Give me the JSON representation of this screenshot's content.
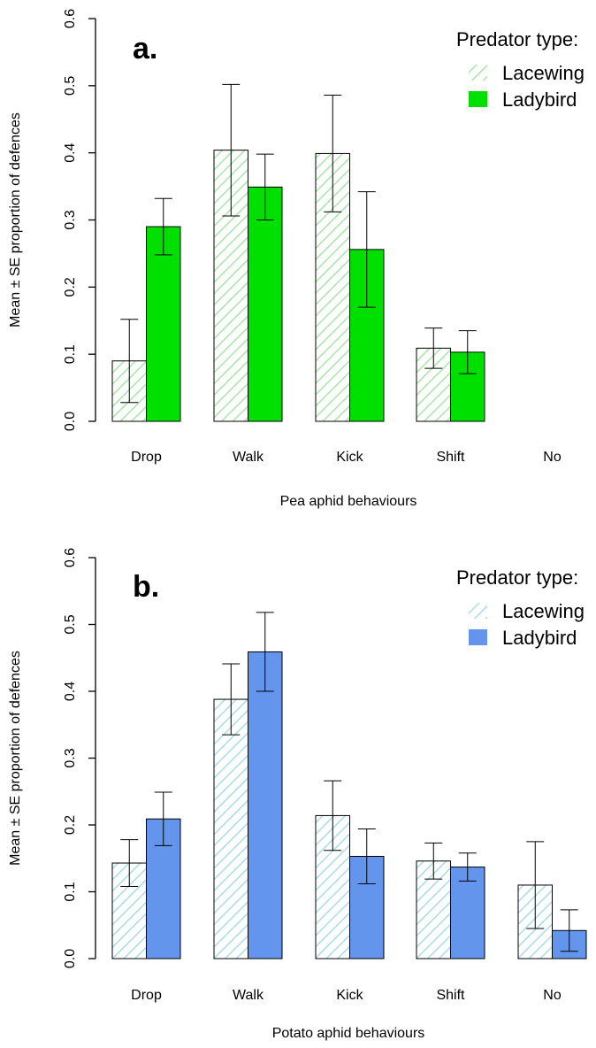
{
  "chart_data": [
    {
      "type": "bar",
      "panel_label": "a.",
      "categories": [
        "Drop",
        "Walk",
        "Kick",
        "Shift",
        "No"
      ],
      "xlabel": "Pea aphid behaviours",
      "ylabel": "Mean ± SE proportion of defences",
      "ylim": [
        0,
        0.6
      ],
      "yticks": [
        "0.0",
        "0.1",
        "0.2",
        "0.3",
        "0.4",
        "0.5",
        "0.6"
      ],
      "legend_title": "Predator type:",
      "legend_position": "top-right",
      "color": "#00e000",
      "series": [
        {
          "name": "Lacewing",
          "pattern": "hatched",
          "values": [
            0.09,
            0.404,
            0.399,
            0.109,
            0.0
          ],
          "se": [
            0.062,
            0.098,
            0.087,
            0.03,
            0.0
          ]
        },
        {
          "name": "Ladybird",
          "pattern": "solid",
          "values": [
            0.29,
            0.349,
            0.256,
            0.103,
            0.0
          ],
          "se": [
            0.042,
            0.049,
            0.086,
            0.032,
            0.0
          ]
        }
      ]
    },
    {
      "type": "bar",
      "panel_label": "b.",
      "categories": [
        "Drop",
        "Walk",
        "Kick",
        "Shift",
        "No"
      ],
      "xlabel": "Potato aphid behaviours",
      "ylabel": "Mean ± SE proportion of defences",
      "ylim": [
        0,
        0.6
      ],
      "yticks": [
        "0.0",
        "0.1",
        "0.2",
        "0.3",
        "0.4",
        "0.5",
        "0.6"
      ],
      "legend_title": "Predator type:",
      "legend_position": "top-right",
      "color": "#6495ed",
      "series": [
        {
          "name": "Lacewing",
          "pattern": "hatched",
          "values": [
            0.143,
            0.388,
            0.214,
            0.146,
            0.11
          ],
          "se": [
            0.035,
            0.053,
            0.052,
            0.027,
            0.065
          ]
        },
        {
          "name": "Ladybird",
          "pattern": "solid",
          "values": [
            0.209,
            0.459,
            0.153,
            0.137,
            0.042
          ],
          "se": [
            0.04,
            0.059,
            0.041,
            0.021,
            0.031
          ]
        }
      ]
    }
  ]
}
